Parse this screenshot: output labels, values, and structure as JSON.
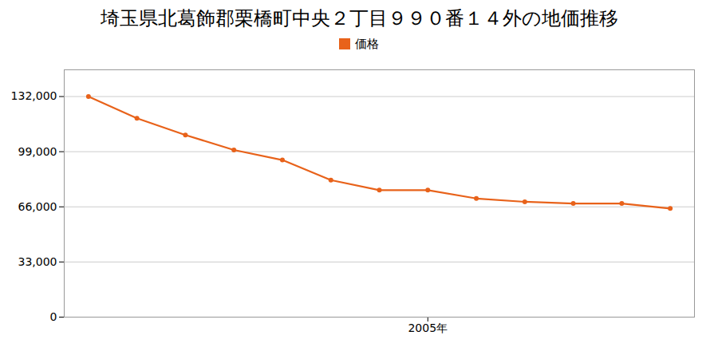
{
  "chart_data": {
    "type": "line",
    "title": "埼玉県北葛飾郡栗橋町中央２丁目９９０番１４外の地価推移",
    "x": [
      1998,
      1999,
      2000,
      2001,
      2002,
      2003,
      2004,
      2005,
      2006,
      2007,
      2008,
      2009,
      2010
    ],
    "series": [
      {
        "name": "価格",
        "color": "#E8621A",
        "marker": "circle",
        "values": [
          132000,
          119000,
          109000,
          100000,
          94000,
          82000,
          76000,
          76000,
          71000,
          69000,
          68000,
          68000,
          65000
        ]
      }
    ],
    "xlim": [
      1997.5,
      2010.5
    ],
    "xticks": [
      {
        "value": 2005,
        "label": "2005年"
      }
    ],
    "ylim": [
      0,
      148000
    ],
    "yticks": [
      0,
      {
        "value": 33000,
        "label": "33,000"
      },
      {
        "value": 66000,
        "label": "66,000"
      },
      {
        "value": 99000,
        "label": "99,000"
      },
      {
        "value": 132000,
        "label": "132,000"
      }
    ],
    "grid": "y",
    "legend": "upper center"
  }
}
